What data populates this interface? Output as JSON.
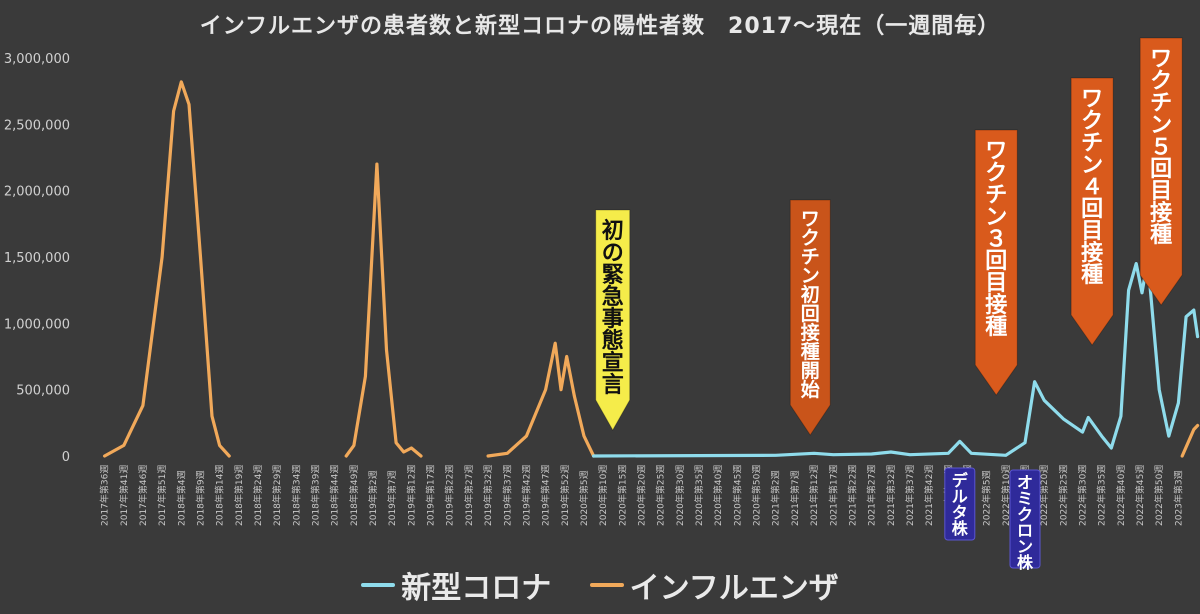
{
  "title": "インフルエンザの患者数と新型コロナの陽性者数　2017〜現在（一週間毎）",
  "legend": [
    {
      "name": "新型コロナ",
      "color": "#8fdcec"
    },
    {
      "name": "インフルエンザ",
      "color": "#f1a95a"
    }
  ],
  "chart_data": {
    "type": "line",
    "ylim": [
      0,
      3000000
    ],
    "yticks": [
      "0",
      "500,000",
      "1,000,000",
      "1,500,000",
      "2,000,000",
      "2,500,000",
      "3,000,000"
    ],
    "yticks_values": [
      0,
      500000,
      1000000,
      1500000,
      2000000,
      2500000,
      3000000
    ],
    "x_labels": [
      "2017年第36週",
      "2017年第41週",
      "2017年第46週",
      "2017年第51週",
      "2018年第4週",
      "2018年第9週",
      "2018年第14週",
      "2018年第19週",
      "2018年第24週",
      "2018年第29週",
      "2018年第34週",
      "2018年第39週",
      "2018年第44週",
      "2018年第49週",
      "2019年第2週",
      "2019年第7週",
      "2019年第12週",
      "2019年第17週",
      "2019年第22週",
      "2019年第27週",
      "2019年第32週",
      "2019年第37週",
      "2019年第42週",
      "2019年第47週",
      "2019年第52週",
      "2020年第5週",
      "2020年第10週",
      "2020年第15週",
      "2020年第20週",
      "2020年第25週",
      "2020年第30週",
      "2020年第35週",
      "2020年第40週",
      "2020年第45週",
      "2020年第50週",
      "2021年第2週",
      "2021年第7週",
      "2021年第12週",
      "2021年第17週",
      "2021年第22週",
      "2021年第27週",
      "2021年第32週",
      "2021年第37週",
      "2021年第42週",
      "2021年第47週",
      "2021年第52週",
      "2022年第5週",
      "2022年第10週",
      "2022年第15週",
      "2022年第20週",
      "2022年第25週",
      "2022年第30週",
      "2022年第35週",
      "2022年第40週",
      "2022年第45週",
      "2022年第50週",
      "2023年第3週"
    ],
    "series": [
      {
        "name": "インフルエンザ",
        "color": "#f1a95a",
        "segments": [
          [
            [
              0,
              0
            ],
            [
              1,
              80000
            ],
            [
              2,
              380000
            ],
            [
              3,
              1500000
            ],
            [
              3.6,
              2600000
            ],
            [
              4,
              2820000
            ],
            [
              4.4,
              2650000
            ],
            [
              5,
              1500000
            ],
            [
              5.6,
              300000
            ],
            [
              6,
              80000
            ],
            [
              6.5,
              0
            ]
          ],
          [
            [
              12.6,
              0
            ],
            [
              13,
              80000
            ],
            [
              13.6,
              600000
            ],
            [
              14.2,
              2200000
            ],
            [
              14.7,
              800000
            ],
            [
              15.2,
              100000
            ],
            [
              15.6,
              30000
            ],
            [
              16,
              60000
            ],
            [
              16.5,
              0
            ]
          ],
          [
            [
              20,
              0
            ],
            [
              21,
              20000
            ],
            [
              22,
              150000
            ],
            [
              23,
              500000
            ],
            [
              23.5,
              850000
            ],
            [
              23.8,
              500000
            ],
            [
              24.1,
              750000
            ],
            [
              24.5,
              450000
            ],
            [
              25,
              150000
            ],
            [
              25.5,
              0
            ]
          ],
          [
            [
              56.2,
              0
            ],
            [
              56.8,
              200000
            ],
            [
              57,
              230000
            ]
          ]
        ]
      },
      {
        "name": "新型コロナ",
        "color": "#8fdcec",
        "segments": [
          [
            [
              25.5,
              0
            ],
            [
              35,
              5000
            ],
            [
              37,
              20000
            ],
            [
              38,
              10000
            ],
            [
              40,
              15000
            ],
            [
              41,
              30000
            ],
            [
              42,
              10000
            ],
            [
              44,
              20000
            ],
            [
              44.6,
              110000
            ],
            [
              45.2,
              20000
            ],
            [
              47,
              5000
            ],
            [
              48,
              100000
            ],
            [
              48.5,
              560000
            ],
            [
              49,
              420000
            ],
            [
              50,
              280000
            ],
            [
              51,
              180000
            ],
            [
              51.3,
              290000
            ],
            [
              52,
              150000
            ],
            [
              52.5,
              60000
            ],
            [
              53,
              300000
            ],
            [
              53.4,
              1250000
            ],
            [
              53.8,
              1450000
            ],
            [
              54.1,
              1230000
            ],
            [
              54.4,
              1480000
            ],
            [
              55,
              500000
            ],
            [
              55.5,
              150000
            ],
            [
              56,
              400000
            ],
            [
              56.4,
              1050000
            ],
            [
              56.8,
              1100000
            ],
            [
              57,
              900000
            ]
          ]
        ]
      }
    ],
    "annotations": [
      {
        "text": "初の緊急事態宣言",
        "x": 26.5,
        "color": "#f5ec4a",
        "text_color": "#111111"
      },
      {
        "text": "ワクチン初回接種開始",
        "x": 36.8,
        "color": "#c9541a",
        "text_color": "#ffffff"
      },
      {
        "text": "ワクチン３回目接種",
        "x": 46.5,
        "color": "#d95a1c",
        "text_color": "#ffffff"
      },
      {
        "text": "ワクチン４回目接種",
        "x": 51.5,
        "color": "#d95a1c",
        "text_color": "#ffffff"
      },
      {
        "text": "ワクチン５回目接種",
        "x": 55.1,
        "color": "#d95a1c",
        "text_color": "#ffffff"
      }
    ],
    "variant_labels": [
      {
        "text": "デルタ株",
        "x": 44.6
      },
      {
        "text": "オミクロン株",
        "x": 48.0
      }
    ]
  }
}
